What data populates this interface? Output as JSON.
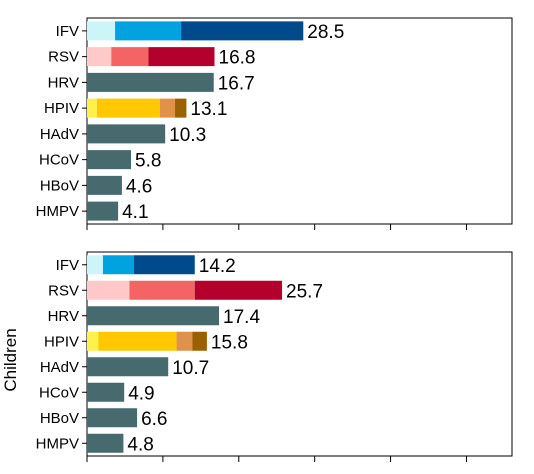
{
  "chart_data": [
    {
      "type": "bar",
      "orientation": "horizontal",
      "stacked": true,
      "panel": "top",
      "ylabel": "",
      "xlim": [
        0,
        56
      ],
      "categories": [
        "IFV",
        "RSV",
        "HRV",
        "HPIV",
        "HAdV",
        "HCoV",
        "HBoV",
        "HMPV"
      ],
      "totals": [
        28.5,
        16.8,
        16.7,
        13.1,
        10.3,
        5.8,
        4.6,
        4.1
      ],
      "total_labels": [
        "28.5",
        "16.8",
        "16.7",
        "13.1",
        "10.3",
        "5.8",
        "4.6",
        "4.1"
      ],
      "segments": [
        {
          "values": [
            3.7
          ],
          "colors": [
            "#ccf5fa",
            "#00a2e0",
            "#004a8c"
          ],
          "parts": [
            3.7,
            8.7,
            16.1
          ]
        },
        {
          "parts": [
            3.2,
            4.9,
            8.7
          ],
          "colors": [
            "#ffc9c9",
            "#f46464",
            "#b3002d"
          ]
        },
        {
          "parts": [
            16.7
          ],
          "colors": [
            "#466a6e"
          ]
        },
        {
          "parts": [
            1.3,
            8.3,
            2.0,
            1.5
          ],
          "colors": [
            "#fff04a",
            "#ffc800",
            "#e0914a",
            "#9c6000"
          ]
        },
        {
          "parts": [
            10.3
          ],
          "colors": [
            "#466a6e"
          ]
        },
        {
          "parts": [
            5.8
          ],
          "colors": [
            "#466a6e"
          ]
        },
        {
          "parts": [
            4.6
          ],
          "colors": [
            "#466a6e"
          ]
        },
        {
          "parts": [
            4.1
          ],
          "colors": [
            "#466a6e"
          ]
        }
      ]
    },
    {
      "type": "bar",
      "orientation": "horizontal",
      "stacked": true,
      "panel": "bottom",
      "ylabel": "Children",
      "xlim": [
        0,
        56
      ],
      "categories": [
        "IFV",
        "RSV",
        "HRV",
        "HPIV",
        "HAdV",
        "HCoV",
        "HBoV",
        "HMPV"
      ],
      "totals": [
        14.2,
        25.7,
        17.4,
        15.8,
        10.7,
        4.9,
        6.6,
        4.8
      ],
      "total_labels": [
        "14.2",
        "25.7",
        "17.4",
        "15.8",
        "10.7",
        "4.9",
        "6.6",
        "4.8"
      ],
      "segments": [
        {
          "parts": [
            2.1,
            4.1,
            8.0
          ],
          "colors": [
            "#ccf5fa",
            "#00a2e0",
            "#004a8c"
          ]
        },
        {
          "parts": [
            5.6,
            8.6,
            11.5
          ],
          "colors": [
            "#ffc9c9",
            "#f46464",
            "#b3002d"
          ]
        },
        {
          "parts": [
            17.4
          ],
          "colors": [
            "#466a6e"
          ]
        },
        {
          "parts": [
            1.5,
            10.3,
            2.1,
            1.9
          ],
          "colors": [
            "#fff04a",
            "#ffc800",
            "#e0914a",
            "#9c6000"
          ]
        },
        {
          "parts": [
            10.7
          ],
          "colors": [
            "#466a6e"
          ]
        },
        {
          "parts": [
            4.9
          ],
          "colors": [
            "#466a6e"
          ]
        },
        {
          "parts": [
            6.6
          ],
          "colors": [
            "#466a6e"
          ]
        },
        {
          "parts": [
            4.8
          ],
          "colors": [
            "#466a6e"
          ]
        }
      ]
    }
  ]
}
